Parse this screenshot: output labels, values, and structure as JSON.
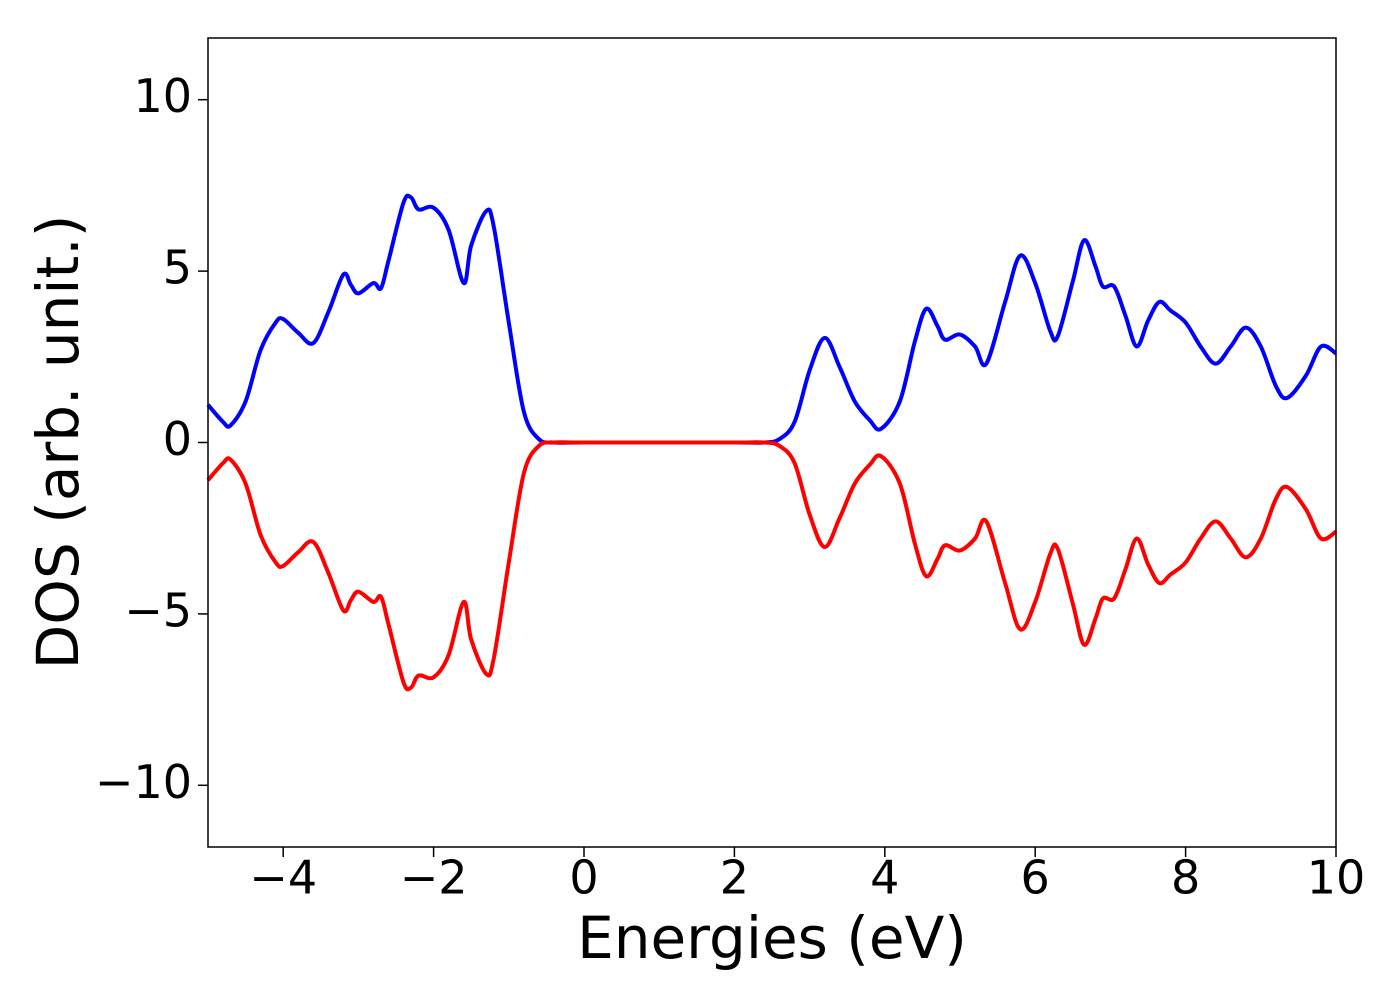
{
  "chart_data": {
    "type": "line",
    "xlabel": "Energies (eV)",
    "ylabel": "DOS (arb. unit.)",
    "x": [
      -5,
      -4.8,
      -4.7,
      -4.5,
      -4.3,
      -4.1,
      -4,
      -3.8,
      -3.6,
      -3.4,
      -3.2,
      -3.1,
      -3,
      -2.8,
      -2.7,
      -2.6,
      -2.4,
      -2.3,
      -2.2,
      -2,
      -1.8,
      -1.6,
      -1.5,
      -1.3,
      -1.2,
      -1,
      -0.8,
      -0.6,
      -0.4,
      0,
      1,
      2,
      2.4,
      2.6,
      2.8,
      3,
      3.2,
      3.4,
      3.6,
      3.8,
      3.95,
      4.2,
      4.4,
      4.55,
      4.7,
      4.8,
      5,
      5.2,
      5.35,
      5.6,
      5.8,
      6,
      6.2,
      6.3,
      6.5,
      6.65,
      6.8,
      6.9,
      7.05,
      7.2,
      7.35,
      7.5,
      7.65,
      7.8,
      8,
      8.2,
      8.4,
      8.6,
      8.8,
      9,
      9.2,
      9.35,
      9.6,
      9.8,
      10
    ],
    "series": [
      {
        "color": "#0000ff",
        "values": [
          1.1,
          0.6,
          0.5,
          1.2,
          2.7,
          3.5,
          3.6,
          3.2,
          2.9,
          3.8,
          4.9,
          4.6,
          4.35,
          4.65,
          4.5,
          5.3,
          7.0,
          7.15,
          6.8,
          6.85,
          6.2,
          4.65,
          5.75,
          6.75,
          6.3,
          3.5,
          0.9,
          0.1,
          0,
          0,
          0,
          0,
          0,
          0.1,
          0.6,
          2.1,
          3.05,
          2.2,
          1.2,
          0.65,
          0.4,
          1.2,
          2.95,
          3.9,
          3.4,
          3.0,
          3.15,
          2.8,
          2.3,
          4.1,
          5.45,
          4.65,
          3.25,
          3.1,
          4.7,
          5.9,
          5.15,
          4.55,
          4.55,
          3.7,
          2.8,
          3.55,
          4.1,
          3.85,
          3.5,
          2.8,
          2.3,
          2.8,
          3.35,
          2.8,
          1.65,
          1.3,
          1.95,
          2.8,
          2.6
        ]
      },
      {
        "color": "#ff0000",
        "values": [
          -1.1,
          -0.6,
          -0.5,
          -1.2,
          -2.7,
          -3.5,
          -3.6,
          -3.2,
          -2.9,
          -3.8,
          -4.9,
          -4.6,
          -4.35,
          -4.65,
          -4.5,
          -5.3,
          -7.0,
          -7.15,
          -6.8,
          -6.85,
          -6.2,
          -4.65,
          -5.75,
          -6.75,
          -6.3,
          -3.5,
          -0.9,
          -0.1,
          0,
          0,
          0,
          0,
          0,
          -0.1,
          -0.6,
          -2.1,
          -3.05,
          -2.2,
          -1.2,
          -0.65,
          -0.4,
          -1.2,
          -2.95,
          -3.9,
          -3.4,
          -3.0,
          -3.15,
          -2.8,
          -2.3,
          -4.1,
          -5.45,
          -4.65,
          -3.25,
          -3.1,
          -4.7,
          -5.9,
          -5.15,
          -4.55,
          -4.55,
          -3.7,
          -2.8,
          -3.55,
          -4.1,
          -3.85,
          -3.5,
          -2.8,
          -2.3,
          -2.8,
          -3.35,
          -2.8,
          -1.65,
          -1.3,
          -1.95,
          -2.8,
          -2.6
        ]
      }
    ],
    "xlim": [
      -5,
      10
    ],
    "xticks": [
      {
        "value": -4,
        "label": "−4"
      },
      {
        "value": -2,
        "label": "−2"
      },
      0,
      2,
      4,
      6,
      8,
      10
    ],
    "ylim": [
      -11.8,
      11.8
    ],
    "yticks": [
      {
        "value": -10,
        "label": "−10"
      },
      {
        "value": -5,
        "label": "−5"
      },
      0,
      5,
      10
    ]
  }
}
